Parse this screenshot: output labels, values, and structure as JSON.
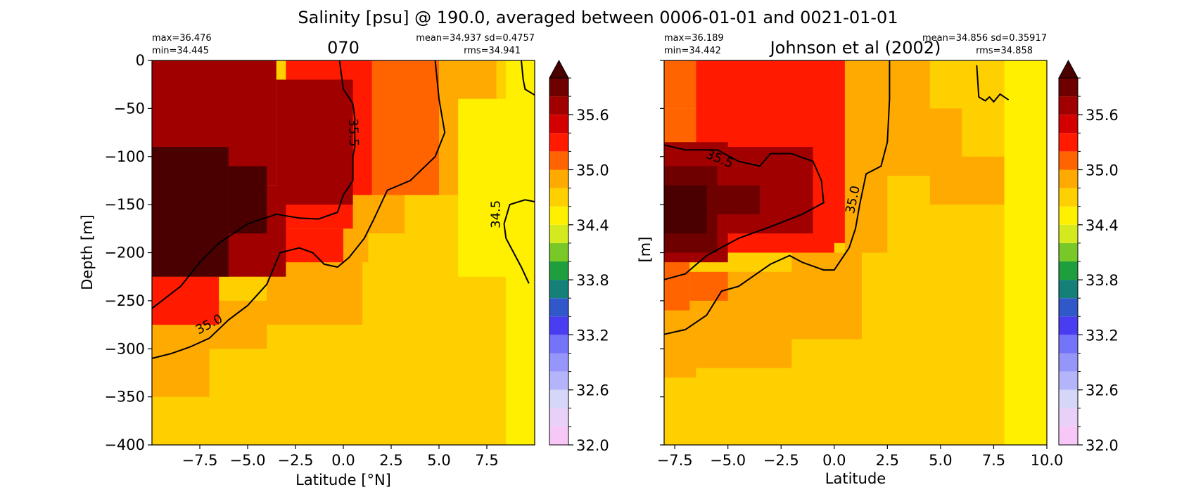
{
  "figure_title": "Salinity [psu] @ 190.0, averaged between 0006-01-01 and 0021-01-01",
  "colors": {
    "levels": [
      32.0,
      32.2,
      32.4,
      32.6,
      32.8,
      33.0,
      33.2,
      33.4,
      33.6,
      33.8,
      34.0,
      34.2,
      34.4,
      34.6,
      34.8,
      35.0,
      35.2,
      35.4,
      35.6,
      35.8,
      36.0
    ],
    "palette": [
      "#f7c8f7",
      "#e8d0f8",
      "#d6d6f8",
      "#b4b4fa",
      "#9696fa",
      "#7474f8",
      "#4a3cf0",
      "#3058c8",
      "#148078",
      "#1e9e3c",
      "#78c828",
      "#d4ea1e",
      "#fff000",
      "#ffd000",
      "#ffaa00",
      "#ff6400",
      "#ff1a00",
      "#d40000",
      "#a00000",
      "#6e0000"
    ],
    "over": "#4a0000",
    "contour": "#000000"
  },
  "chart_data": [
    {
      "type": "heatmap",
      "title": "070",
      "stats_left": [
        "max=36.476",
        "min=34.445"
      ],
      "stats_right": [
        "mean=34.937 sd=0.4757",
        "rms=34.941"
      ],
      "xlabel": "Latitude [°N]",
      "ylabel": "Depth [m]",
      "xlim": [
        -10,
        10
      ],
      "ylim": [
        -400,
        0
      ],
      "xticks": [
        -7.5,
        -5.0,
        -2.5,
        0.0,
        2.5,
        5.0,
        7.5
      ],
      "xtick_labels": [
        "−7.5",
        "−5.0",
        "−2.5",
        "0.0",
        "2.5",
        "5.0",
        "7.5"
      ],
      "yticks": [
        0,
        -50,
        -100,
        -150,
        -200,
        -250,
        -300,
        -350,
        -400
      ],
      "ytick_labels": [
        "0",
        "−50",
        "−100",
        "−150",
        "−200",
        "−250",
        "−300",
        "−350",
        "−400"
      ],
      "show_ytick_labels": true,
      "colorbar_ticks": [
        "32.0",
        "32.6",
        "33.2",
        "33.8",
        "34.4",
        "35.0",
        "35.6"
      ],
      "colorbar_tick_values": [
        32.0,
        32.6,
        33.2,
        33.8,
        34.4,
        35.0,
        35.6
      ],
      "field_regions": [
        {
          "x": [
            -10,
            10
          ],
          "y": [
            -400,
            0
          ],
          "value": 34.7
        },
        {
          "x": [
            -10,
            -7
          ],
          "y": [
            -350,
            -275
          ],
          "value": 34.9
        },
        {
          "x": [
            -7,
            -4
          ],
          "y": [
            -300,
            -250
          ],
          "value": 34.9
        },
        {
          "x": [
            -4,
            1
          ],
          "y": [
            -275,
            -210
          ],
          "value": 34.9
        },
        {
          "x": [
            -4,
            1.3
          ],
          "y": [
            -210,
            -180
          ],
          "value": 34.9
        },
        {
          "x": [
            0,
            3.2
          ],
          "y": [
            -180,
            -140
          ],
          "value": 34.9
        },
        {
          "x": [
            2.5,
            6
          ],
          "y": [
            -140,
            -100
          ],
          "value": 34.9
        },
        {
          "x": [
            5,
            8
          ],
          "y": [
            -100,
            0
          ],
          "value": 34.9
        },
        {
          "x": [
            1.5,
            5
          ],
          "y": [
            -140,
            0
          ],
          "value": 35.1
        },
        {
          "x": [
            -10,
            -6.5
          ],
          "y": [
            -275,
            -225
          ],
          "value": 35.3
        },
        {
          "x": [
            -5.5,
            0
          ],
          "y": [
            -210,
            -175
          ],
          "value": 35.3
        },
        {
          "x": [
            -3.5,
            0.5
          ],
          "y": [
            -175,
            -140
          ],
          "value": 35.3
        },
        {
          "x": [
            -3,
            1.5
          ],
          "y": [
            -140,
            0
          ],
          "value": 35.3
        },
        {
          "x": [
            -10,
            -3
          ],
          "y": [
            -225,
            -130
          ],
          "value": 35.7
        },
        {
          "x": [
            -10,
            -3.5
          ],
          "y": [
            -130,
            0
          ],
          "value": 35.7
        },
        {
          "x": [
            -3.5,
            0.5
          ],
          "y": [
            -150,
            -20
          ],
          "value": 35.7
        },
        {
          "x": [
            -10,
            -6
          ],
          "y": [
            -225,
            -90
          ],
          "value": 36.1
        },
        {
          "x": [
            -6,
            -4
          ],
          "y": [
            -180,
            -110
          ],
          "value": 36.1
        },
        {
          "x": [
            8.5,
            10
          ],
          "y": [
            -400,
            0
          ],
          "value": 34.5
        },
        {
          "x": [
            6,
            8.5
          ],
          "y": [
            -225,
            -40
          ],
          "value": 34.5
        }
      ],
      "contours": [
        {
          "label": "35.5",
          "label_at": [
            0.5,
            -75
          ],
          "label_angle": 88,
          "points": [
            [
              -0.2,
              0
            ],
            [
              0,
              -30
            ],
            [
              0.5,
              -45
            ],
            [
              0.6,
              -60
            ],
            [
              0.6,
              -90
            ],
            [
              0.5,
              -100
            ],
            [
              0.5,
              -125
            ],
            [
              0,
              -140
            ],
            [
              -0.3,
              -158
            ],
            [
              -1.3,
              -165
            ],
            [
              -2.3,
              -164
            ],
            [
              -3.5,
              -160
            ],
            [
              -5,
              -170
            ],
            [
              -6.5,
              -190
            ],
            [
              -7.5,
              -210
            ],
            [
              -8.5,
              -235
            ],
            [
              -10,
              -258
            ]
          ]
        },
        {
          "label": "35.0",
          "label_at": [
            -7.0,
            -275
          ],
          "label_angle": -28,
          "points": [
            [
              -10,
              -310
            ],
            [
              -9,
              -305
            ],
            [
              -8,
              -298
            ],
            [
              -7,
              -289
            ],
            [
              -6,
              -270
            ],
            [
              -5,
              -255
            ],
            [
              -4,
              -233
            ],
            [
              -3.3,
              -200
            ],
            [
              -2.3,
              -195
            ],
            [
              -1.6,
              -200
            ],
            [
              -1,
              -212
            ],
            [
              -0.3,
              -215
            ],
            [
              0.3,
              -205
            ],
            [
              1.1,
              -185
            ],
            [
              1.6,
              -165
            ],
            [
              2.3,
              -135
            ],
            [
              3.5,
              -125
            ],
            [
              4.8,
              -100
            ],
            [
              5.3,
              -75
            ],
            [
              5,
              -40
            ],
            [
              4.8,
              0
            ]
          ]
        },
        {
          "label": "34.5",
          "label_at": [
            8.0,
            -160
          ],
          "label_angle": -90,
          "points": [
            [
              9.7,
              -232
            ],
            [
              9.3,
              -215
            ],
            [
              8.9,
              -200
            ],
            [
              8.5,
              -185
            ],
            [
              8.4,
              -170
            ],
            [
              8.7,
              -150
            ],
            [
              9.5,
              -145
            ],
            [
              10,
              -147
            ]
          ]
        },
        {
          "label": "",
          "points": [
            [
              9.3,
              0
            ],
            [
              9.4,
              -20
            ],
            [
              9.5,
              -30
            ],
            [
              10,
              -36
            ]
          ]
        }
      ]
    },
    {
      "type": "heatmap",
      "title": "Johnson et al (2002)",
      "stats_left": [
        "max=36.189",
        "min=34.442"
      ],
      "stats_right": [
        "mean=34.856 sd=0.35917",
        "rms=34.858"
      ],
      "xlabel": "Latitude",
      "ylabel": "[m]",
      "xlim": [
        -8,
        10
      ],
      "ylim": [
        -400,
        0
      ],
      "xticks": [
        -7.5,
        -5.0,
        -2.5,
        0.0,
        2.5,
        5.0,
        7.5,
        10.0
      ],
      "xtick_labels": [
        "−7.5",
        "−5.0",
        "−2.5",
        "0.0",
        "2.5",
        "5.0",
        "7.5",
        "10.0"
      ],
      "yticks": [
        0,
        -50,
        -100,
        -150,
        -200,
        -250,
        -300,
        -350,
        -400
      ],
      "ytick_labels": [
        "",
        "",
        "",
        "",
        "",
        "",
        "",
        "",
        ""
      ],
      "show_ytick_labels": false,
      "colorbar_ticks": [
        "32.0",
        "32.6",
        "33.2",
        "33.8",
        "34.4",
        "35.0",
        "35.6"
      ],
      "colorbar_tick_values": [
        32.0,
        32.6,
        33.2,
        33.8,
        34.4,
        35.0,
        35.6
      ],
      "field_regions": [
        {
          "x": [
            -8,
            10
          ],
          "y": [
            -400,
            0
          ],
          "value": 34.7
        },
        {
          "x": [
            8,
            10
          ],
          "y": [
            -400,
            0
          ],
          "value": 34.5
        },
        {
          "x": [
            2.5,
            8
          ],
          "y": [
            -400,
            -120
          ],
          "value": 34.7
        },
        {
          "x": [
            -8,
            -6.5
          ],
          "y": [
            -330,
            -250
          ],
          "value": 34.9
        },
        {
          "x": [
            -6.5,
            -2
          ],
          "y": [
            -320,
            -220
          ],
          "value": 34.9
        },
        {
          "x": [
            -2,
            1.3
          ],
          "y": [
            -290,
            -200
          ],
          "value": 34.9
        },
        {
          "x": [
            0.5,
            2.5
          ],
          "y": [
            -200,
            -120
          ],
          "value": 34.9
        },
        {
          "x": [
            0.5,
            4.5
          ],
          "y": [
            -120,
            0
          ],
          "value": 34.9
        },
        {
          "x": [
            4.5,
            8
          ],
          "y": [
            -150,
            -100
          ],
          "value": 34.9
        },
        {
          "x": [
            4.5,
            6
          ],
          "y": [
            -100,
            -50
          ],
          "value": 34.9
        },
        {
          "x": [
            -8,
            -6.8
          ],
          "y": [
            -260,
            -210
          ],
          "value": 35.1
        },
        {
          "x": [
            -6.8,
            -5
          ],
          "y": [
            -250,
            -220
          ],
          "value": 35.1
        },
        {
          "x": [
            -8,
            -6.5
          ],
          "y": [
            -210,
            -50
          ],
          "value": 35.1
        },
        {
          "x": [
            -8,
            -6.5
          ],
          "y": [
            -50,
            0
          ],
          "value": 35.1
        },
        {
          "x": [
            -6.5,
            0.5
          ],
          "y": [
            -120,
            0
          ],
          "value": 35.3
        },
        {
          "x": [
            -6,
            0
          ],
          "y": [
            -200,
            -120
          ],
          "value": 35.3
        },
        {
          "x": [
            -2,
            0.5
          ],
          "y": [
            -190,
            -120
          ],
          "value": 35.3
        },
        {
          "x": [
            -8,
            -5
          ],
          "y": [
            -210,
            -85
          ],
          "value": 35.7
        },
        {
          "x": [
            -5,
            -1
          ],
          "y": [
            -180,
            -90
          ],
          "value": 35.7
        },
        {
          "x": [
            -8,
            -5.5
          ],
          "y": [
            -200,
            -110
          ],
          "value": 35.9
        },
        {
          "x": [
            -5.5,
            -3.5
          ],
          "y": [
            -160,
            -130
          ],
          "value": 35.9
        },
        {
          "x": [
            -8,
            -6
          ],
          "y": [
            -180,
            -130
          ],
          "value": 36.1
        }
      ],
      "contours": [
        {
          "label": "35.5",
          "label_at": [
            -5.4,
            -103
          ],
          "label_angle": 22,
          "points": [
            [
              -8,
              -88
            ],
            [
              -7,
              -93
            ],
            [
              -6,
              -93
            ],
            [
              -5.5,
              -93
            ],
            [
              -4.5,
              -105
            ],
            [
              -3.5,
              -110
            ],
            [
              -3,
              -97
            ],
            [
              -2,
              -97
            ],
            [
              -1,
              -105
            ],
            [
              -0.6,
              -125
            ],
            [
              -0.5,
              -148
            ],
            [
              -1.5,
              -160
            ],
            [
              -3,
              -173
            ],
            [
              -4.5,
              -185
            ],
            [
              -6,
              -203
            ],
            [
              -7,
              -222
            ],
            [
              -8,
              -228
            ]
          ]
        },
        {
          "label": "35.0",
          "label_at": [
            0.9,
            -145
          ],
          "label_angle": -78,
          "points": [
            [
              -8,
              -285
            ],
            [
              -7,
              -280
            ],
            [
              -6,
              -265
            ],
            [
              -5.3,
              -240
            ],
            [
              -4.5,
              -235
            ],
            [
              -3,
              -212
            ],
            [
              -2.1,
              -203
            ],
            [
              -1.5,
              -210
            ],
            [
              -0.5,
              -218
            ],
            [
              0,
              -218
            ],
            [
              0.7,
              -195
            ],
            [
              1,
              -175
            ],
            [
              1.2,
              -150
            ],
            [
              1.5,
              -118
            ],
            [
              2.2,
              -110
            ],
            [
              2.5,
              -85
            ],
            [
              2.6,
              -40
            ],
            [
              2.6,
              0
            ]
          ]
        },
        {
          "label": "",
          "points": [
            [
              6.7,
              -5
            ],
            [
              6.8,
              -38
            ],
            [
              7.1,
              -42
            ],
            [
              7.3,
              -38
            ],
            [
              7.5,
              -43
            ],
            [
              7.8,
              -35
            ],
            [
              8.2,
              -41
            ]
          ]
        }
      ]
    }
  ]
}
